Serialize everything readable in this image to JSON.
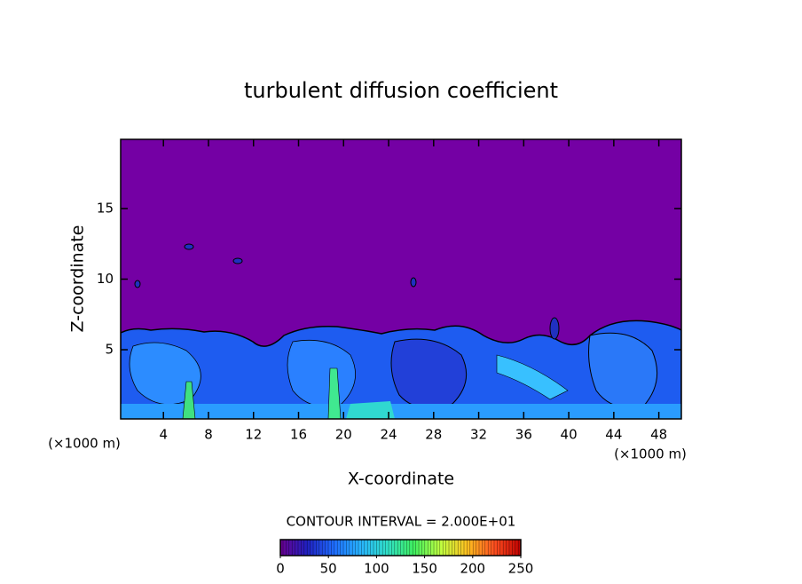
{
  "chart_data": {
    "type": "contour",
    "title": "turbulent diffusion coefficient",
    "xlabel": "X-coordinate",
    "ylabel": "Z-coordinate",
    "xunit": "(×1000 m)",
    "yunit": "(×1000 m)",
    "xlim": [
      0.2,
      50
    ],
    "xticks": [
      4,
      8,
      12,
      16,
      20,
      24,
      28,
      32,
      36,
      40,
      44,
      48
    ],
    "ylim": [
      0.1,
      19.9
    ],
    "yticks": [
      5,
      10,
      15
    ],
    "contour_interval": "CONTOUR INTERVAL = 2.000E+01",
    "colorbar": {
      "lim": [
        0,
        250
      ],
      "ticks": [
        0,
        50,
        100,
        150,
        200,
        250
      ],
      "colors": [
        "#6a0090",
        "#2020c0",
        "#1e6cff",
        "#28b4ff",
        "#30e0c8",
        "#40f060",
        "#c0ff40",
        "#ffc020",
        "#ff5020",
        "#c00000"
      ]
    }
  }
}
